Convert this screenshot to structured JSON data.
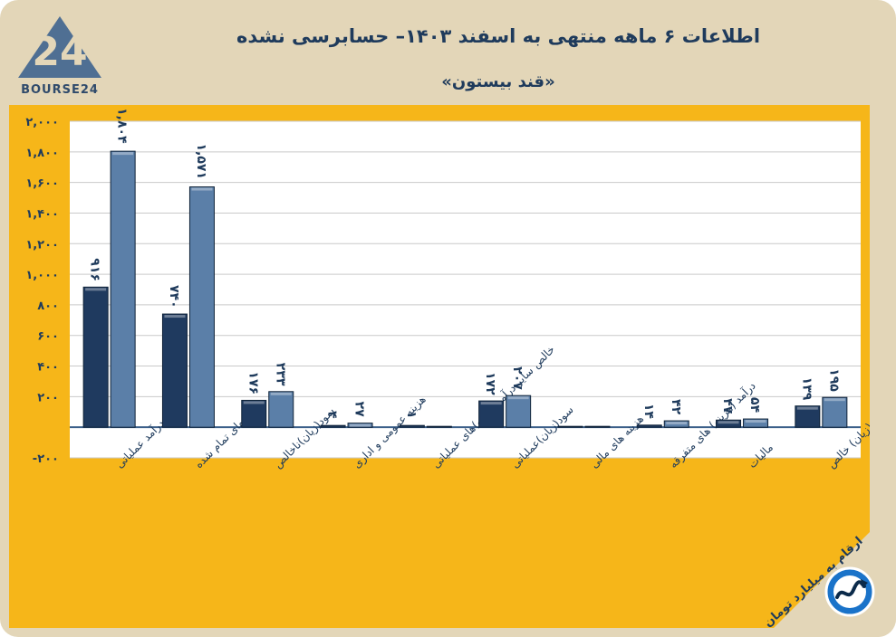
{
  "header": {
    "title": "اطلاعات ۶ ماهه منتهی به اسفند ۱۴۰۳– حسابرسی نشده",
    "subtitle": "«قند بیستون»"
  },
  "logo": {
    "text": "BOURSE24",
    "mark": "24"
  },
  "note": {
    "text": "ارقام به میلیارد تومان"
  },
  "colors": {
    "background": "#e3d6b8",
    "panel": "#f6b619",
    "series_dark": "#1f3a5f",
    "series_light": "#5b7fa8",
    "text": "#1f3b5c"
  },
  "chart_data": {
    "type": "bar",
    "title": "",
    "xlabel": "",
    "ylabel": "",
    "ylim": [
      -200,
      2000
    ],
    "yticks": [
      -200,
      200,
      400,
      600,
      800,
      1000,
      1200,
      1400,
      1600,
      1800,
      2000
    ],
    "ytick_labels": [
      "-۲۰۰",
      "۲۰۰",
      "۴۰۰",
      "۶۰۰",
      "۸۰۰",
      "۱,۰۰۰",
      "۱,۲۰۰",
      "۱,۴۰۰",
      "۱,۶۰۰",
      "۱,۸۰۰",
      "۲,۰۰۰"
    ],
    "grid": true,
    "legend": "none",
    "categories": [
      "درآمد عملیاتی",
      "بهای تمام شده",
      "سود(زیان)ناخالص",
      "هزینه عمومی و اداری",
      "خالص سایر درآمد(هزینه)های عملیاتی",
      "سود(زیان)عملیاتی",
      "هزینه های مالی",
      "درآمد (هزینه) های متفرقه",
      "مالیات",
      "سود(زیان) خالص"
    ],
    "series": [
      {
        "values": [
          916,
          740,
          176,
          4,
          1,
          172,
          0,
          14,
          47,
          139
        ],
        "labels": [
          "۹۱۶",
          "۷۴۰",
          "۱۷۶",
          "۴",
          "۱",
          "۱۷۲",
          "",
          "۱۴",
          "۴۷",
          "۱۳۹"
        ]
      },
      {
        "values": [
          1804,
          1571,
          233,
          27,
          0,
          207,
          0,
          42,
          54,
          195
        ],
        "labels": [
          "۱,۸۰۴",
          "۱,۵۷۱",
          "۲۳۳",
          "۲۷",
          "",
          "۲۰۷",
          "",
          "۴۲",
          "۵۴",
          "۱۹۵"
        ]
      }
    ]
  }
}
